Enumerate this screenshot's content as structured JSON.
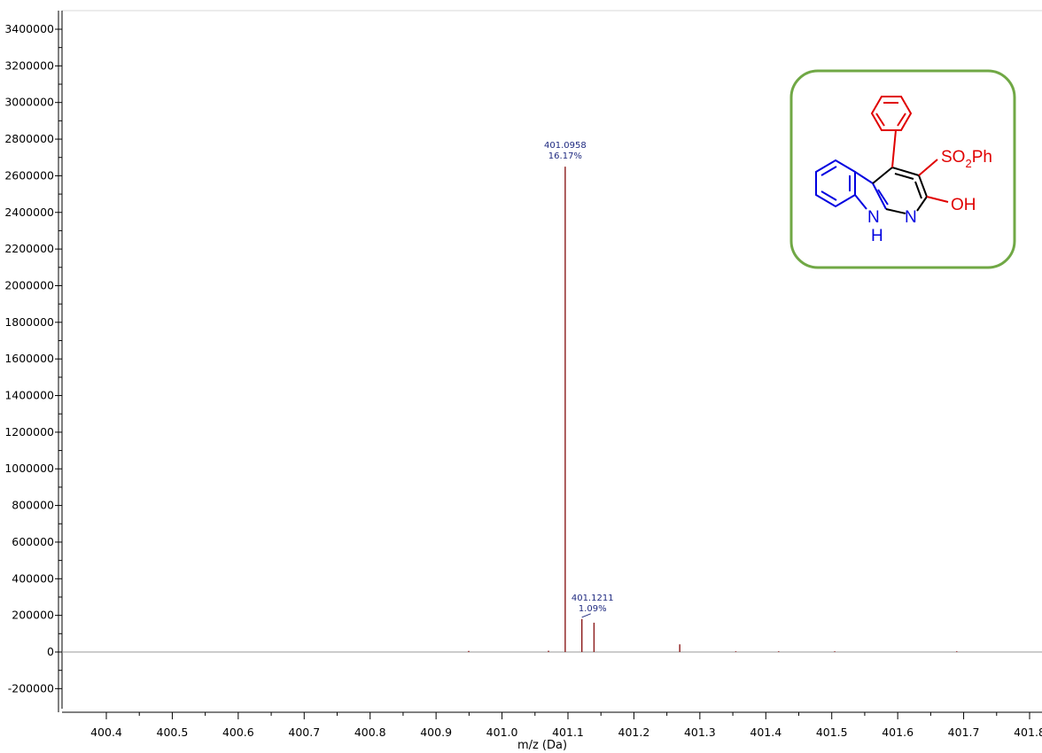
{
  "chart_data": {
    "type": "bar",
    "title": "",
    "xlabel": "m/z (Da)",
    "ylabel": "",
    "xlim": [
      400.35,
      401.86
    ],
    "ylim": [
      -300000,
      3500000
    ],
    "grid": false,
    "x_ticks": [
      {
        "value": 400.4,
        "label": "400.4"
      },
      {
        "value": 400.5,
        "label": "400.5"
      },
      {
        "value": 400.6,
        "label": "400.6"
      },
      {
        "value": 400.7,
        "label": "400.7"
      },
      {
        "value": 400.8,
        "label": "400.8"
      },
      {
        "value": 400.9,
        "label": "400.9"
      },
      {
        "value": 401.0,
        "label": "401.0"
      },
      {
        "value": 401.1,
        "label": "401.1"
      },
      {
        "value": 401.2,
        "label": "401.2"
      },
      {
        "value": 401.3,
        "label": "401.3"
      },
      {
        "value": 401.4,
        "label": "401.4"
      },
      {
        "value": 401.5,
        "label": "401.5"
      },
      {
        "value": 401.6,
        "label": "401.6"
      },
      {
        "value": 401.7,
        "label": "401.7"
      },
      {
        "value": 401.8,
        "label": "401.8"
      }
    ],
    "y_ticks": [
      {
        "value": 3400000,
        "label": "3400000"
      },
      {
        "value": 3200000,
        "label": "3200000"
      },
      {
        "value": 3000000,
        "label": "3000000"
      },
      {
        "value": 2800000,
        "label": "2800000"
      },
      {
        "value": 2600000,
        "label": "2600000"
      },
      {
        "value": 2400000,
        "label": "2400000"
      },
      {
        "value": 2200000,
        "label": "2200000"
      },
      {
        "value": 2000000,
        "label": "2000000"
      },
      {
        "value": 1800000,
        "label": "1800000"
      },
      {
        "value": 1600000,
        "label": "1600000"
      },
      {
        "value": 1400000,
        "label": "1400000"
      },
      {
        "value": 1200000,
        "label": "1200000"
      },
      {
        "value": 1000000,
        "label": "1000000"
      },
      {
        "value": 800000,
        "label": "800000"
      },
      {
        "value": 600000,
        "label": "600000"
      },
      {
        "value": 400000,
        "label": "400000"
      },
      {
        "value": 200000,
        "label": "200000"
      },
      {
        "value": 0,
        "label": "0"
      },
      {
        "value": -200000,
        "label": "-200000"
      }
    ],
    "series": [
      {
        "points": [
          {
            "x": 400.9495,
            "y": 6000
          },
          {
            "x": 401.0705,
            "y": 7000
          },
          {
            "x": 401.0958,
            "y": 2650000
          },
          {
            "x": 401.1211,
            "y": 180000
          },
          {
            "x": 401.1395,
            "y": 160000
          },
          {
            "x": 401.2695,
            "y": 42000
          },
          {
            "x": 401.3545,
            "y": 2500
          },
          {
            "x": 401.4195,
            "y": 2500
          },
          {
            "x": 401.5045,
            "y": 2500
          },
          {
            "x": 401.6895,
            "y": 2500
          }
        ],
        "color": "#8b1a1a"
      }
    ],
    "annotations": [
      {
        "x": 401.0958,
        "y": 2650000,
        "mz": "401.0958",
        "percent": "16.17%"
      },
      {
        "x": 401.1211,
        "y": 180000,
        "mz": "401.1211",
        "percent": "1.09%"
      }
    ],
    "colors": {
      "peak": "#8b1a1a",
      "annotation": "#1f2a80",
      "inset_border": "#70a845",
      "molecule_red": "#e00000",
      "molecule_blue": "#0000e0"
    }
  },
  "inset": {
    "substituent": "SO",
    "substituent_sub": "2",
    "substituent_tail": "Ph",
    "hydroxyl": "OH",
    "ring_n": "N",
    "nh_n": "N",
    "nh_h": "H"
  }
}
